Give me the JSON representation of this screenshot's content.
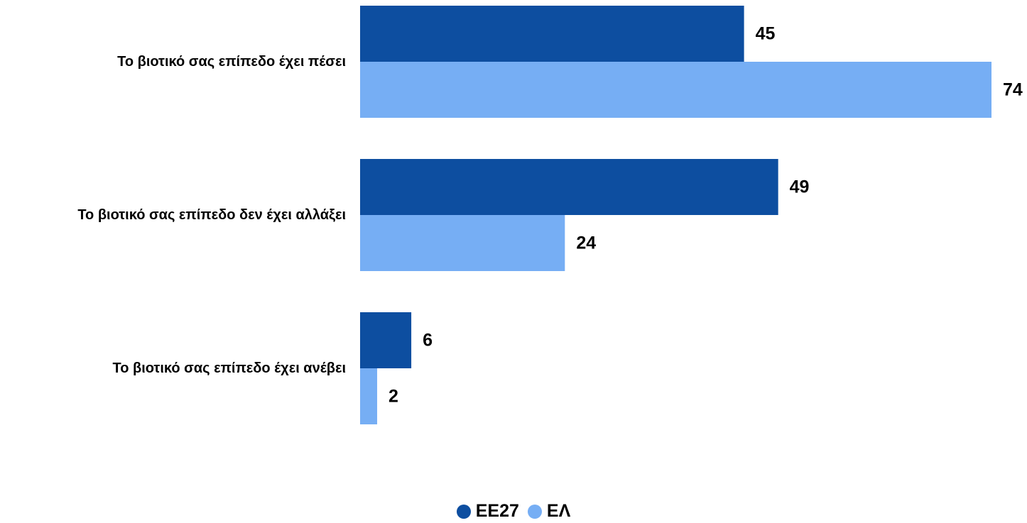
{
  "chart_data": {
    "type": "bar",
    "orientation": "horizontal",
    "categories": [
      "Το βιοτικό σας επίπεδο έχει πέσει",
      "Το βιοτικό σας επίπεδο δεν έχει αλλάξει",
      "Το βιοτικό σας επίπεδο έχει ανέβει"
    ],
    "series": [
      {
        "name": "ΕΕ27",
        "color": "#0d4ea0",
        "values": [
          45,
          49,
          6
        ]
      },
      {
        "name": "ΕΛ",
        "color": "#76aef4",
        "values": [
          74,
          24,
          2
        ]
      }
    ],
    "xlim": [
      0,
      74
    ],
    "grid": false,
    "legend_position": "bottom-center"
  }
}
